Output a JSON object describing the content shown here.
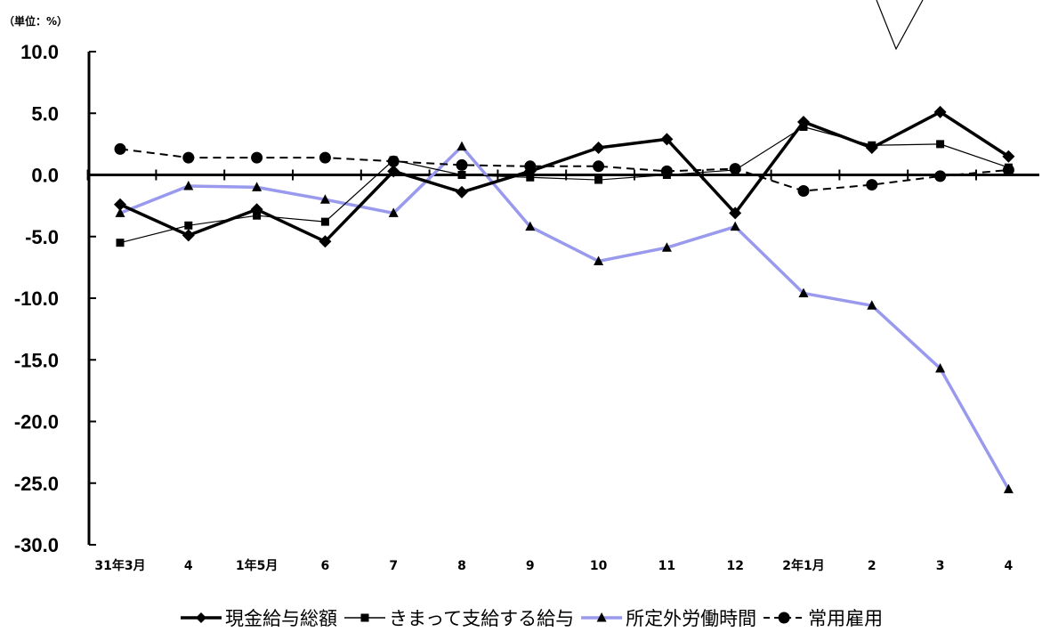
{
  "chart_data": {
    "type": "line",
    "unit_label": "（単位：%）",
    "categories": [
      "31年3月",
      "4",
      "1年5月",
      "6",
      "7",
      "8",
      "9",
      "10",
      "11",
      "12",
      "2年1月",
      "2",
      "3",
      "4"
    ],
    "ylim": [
      -30.0,
      10.0
    ],
    "yticks": [
      "10.0",
      "5.0",
      "0.0",
      "-5.0",
      "-10.0",
      "-15.0",
      "-20.0",
      "-25.0",
      "-30.0"
    ],
    "grid": false,
    "legend_position": "bottom",
    "series": [
      {
        "name": "現金給与総額",
        "color": "#000000",
        "marker": "diamond",
        "dash": "solid",
        "width": 3.5,
        "values": [
          -2.4,
          -4.9,
          -2.8,
          -5.4,
          0.3,
          -1.4,
          0.3,
          2.2,
          2.9,
          -3.1,
          4.3,
          2.2,
          5.1,
          1.5
        ]
      },
      {
        "name": "きまって支給する給与",
        "color": "#000000",
        "marker": "square",
        "dash": "solid",
        "width": 1.2,
        "values": [
          -5.5,
          -4.1,
          -3.3,
          -3.8,
          1.2,
          0.0,
          -0.2,
          -0.4,
          0.0,
          0.4,
          3.9,
          2.4,
          2.5,
          0.6
        ]
      },
      {
        "name": "所定外労働時間",
        "color": "#9999EE",
        "marker": "triangle",
        "dash": "solid",
        "width": 3.5,
        "values": [
          -3.1,
          -0.9,
          -1.0,
          -2.0,
          -3.1,
          2.3,
          -4.2,
          -7.0,
          -5.9,
          -4.2,
          -9.6,
          -10.6,
          -15.7,
          -25.5
        ]
      },
      {
        "name": "常用雇用",
        "color": "#000000",
        "marker": "circle",
        "dash": "dashed",
        "width": 2,
        "values": [
          2.1,
          1.4,
          1.4,
          1.4,
          1.1,
          0.8,
          0.7,
          0.7,
          0.3,
          0.5,
          -1.3,
          -0.8,
          -0.1,
          0.4
        ]
      }
    ]
  }
}
